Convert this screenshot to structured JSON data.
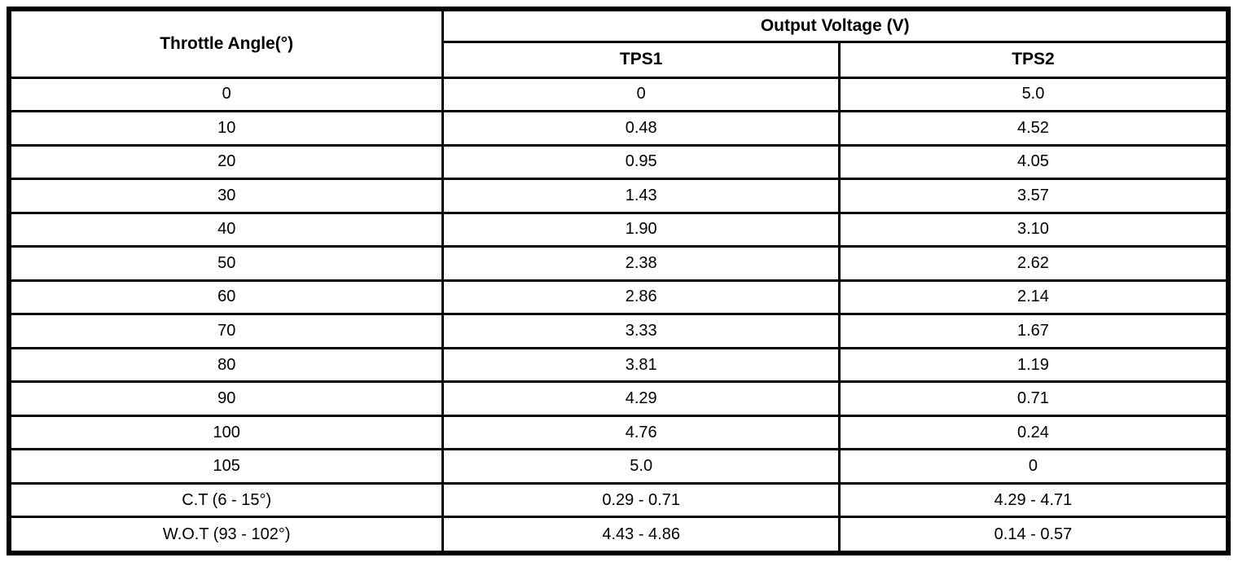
{
  "table": {
    "header": {
      "throttle_angle": "Throttle Angle(°)",
      "output_voltage": "Output Voltage (V)",
      "tps1": "TPS1",
      "tps2": "TPS2"
    },
    "rows": [
      {
        "angle": "0",
        "tps1": "0",
        "tps2": "5.0"
      },
      {
        "angle": "10",
        "tps1": "0.48",
        "tps2": "4.52"
      },
      {
        "angle": "20",
        "tps1": "0.95",
        "tps2": "4.05"
      },
      {
        "angle": "30",
        "tps1": "1.43",
        "tps2": "3.57"
      },
      {
        "angle": "40",
        "tps1": "1.90",
        "tps2": "3.10"
      },
      {
        "angle": "50",
        "tps1": "2.38",
        "tps2": "2.62"
      },
      {
        "angle": "60",
        "tps1": "2.86",
        "tps2": "2.14"
      },
      {
        "angle": "70",
        "tps1": "3.33",
        "tps2": "1.67"
      },
      {
        "angle": "80",
        "tps1": "3.81",
        "tps2": "1.19"
      },
      {
        "angle": "90",
        "tps1": "4.29",
        "tps2": "0.71"
      },
      {
        "angle": "100",
        "tps1": "4.76",
        "tps2": "0.24"
      },
      {
        "angle": "105",
        "tps1": "5.0",
        "tps2": "0"
      },
      {
        "angle": "C.T (6 - 15°)",
        "tps1": "0.29 - 0.71",
        "tps2": "4.29 - 4.71"
      },
      {
        "angle": "W.O.T (93 - 102°)",
        "tps1": "4.43 - 4.86",
        "tps2": "0.14 - 0.57"
      }
    ],
    "colors": {
      "border": "#000000",
      "background": "#ffffff",
      "text": "#000000"
    }
  }
}
